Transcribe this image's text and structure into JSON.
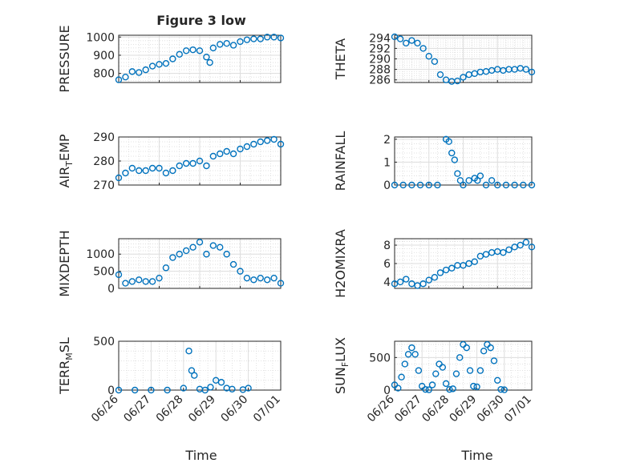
{
  "figure": {
    "title": "Figure 3 low",
    "xlabel": "Time",
    "marker_color": "#0072BD"
  },
  "chart_data": [
    {
      "type": "scatter",
      "ylabel": "PRESSURE",
      "x_range": [
        "06/26",
        "06/30"
      ],
      "ylim": [
        750,
        1010
      ],
      "yticks": [
        800,
        900,
        1000
      ],
      "grid": true,
      "x": [
        "06/26 00:00",
        "06/26 04:00",
        "06/26 08:00",
        "06/26 12:00",
        "06/26 16:00",
        "06/26 20:00",
        "06/27 00:00",
        "06/27 04:00",
        "06/27 08:00",
        "06/27 12:00",
        "06/27 16:00",
        "06/27 20:00",
        "06/28 00:00",
        "06/28 04:00",
        "06/28 06:00",
        "06/28 08:00",
        "06/28 12:00",
        "06/28 16:00",
        "06/28 20:00",
        "06/29 00:00",
        "06/29 04:00",
        "06/29 08:00",
        "06/29 12:00",
        "06/29 16:00",
        "06/29 20:00",
        "06/30 00:00"
      ],
      "y": [
        765,
        780,
        810,
        805,
        820,
        840,
        850,
        855,
        880,
        905,
        925,
        930,
        925,
        890,
        860,
        940,
        960,
        965,
        955,
        975,
        985,
        990,
        990,
        1000,
        1000,
        995
      ]
    },
    {
      "type": "scatter",
      "ylabel": "THETA",
      "x_range": [
        "06/26",
        "06/30"
      ],
      "ylim": [
        285.5,
        294.5
      ],
      "yticks": [
        286,
        288,
        290,
        292,
        294
      ],
      "grid": true,
      "x": [
        "06/26 00:00",
        "06/26 04:00",
        "06/26 08:00",
        "06/26 12:00",
        "06/26 16:00",
        "06/26 20:00",
        "06/27 00:00",
        "06/27 04:00",
        "06/27 08:00",
        "06/27 12:00",
        "06/27 16:00",
        "06/27 20:00",
        "06/28 00:00",
        "06/28 04:00",
        "06/28 08:00",
        "06/28 12:00",
        "06/28 16:00",
        "06/28 20:00",
        "06/29 00:00",
        "06/29 04:00",
        "06/29 08:00",
        "06/29 12:00",
        "06/29 16:00",
        "06/29 20:00",
        "06/30 00:00"
      ],
      "y": [
        294.2,
        293.8,
        293.0,
        293.5,
        293.0,
        292.0,
        290.5,
        289.5,
        287.0,
        286.0,
        285.7,
        285.8,
        286.5,
        287.0,
        287.2,
        287.5,
        287.6,
        287.8,
        288.0,
        287.8,
        288.0,
        288.0,
        288.2,
        288.0,
        287.5
      ]
    },
    {
      "type": "scatter",
      "ylabel": "AIR_TEMP",
      "x_range": [
        "06/26",
        "06/30"
      ],
      "ylim": [
        270,
        290
      ],
      "yticks": [
        270,
        280,
        290
      ],
      "grid": true,
      "x": [
        "06/26 00:00",
        "06/26 04:00",
        "06/26 08:00",
        "06/26 12:00",
        "06/26 16:00",
        "06/26 20:00",
        "06/27 00:00",
        "06/27 04:00",
        "06/27 08:00",
        "06/27 12:00",
        "06/27 16:00",
        "06/27 20:00",
        "06/28 00:00",
        "06/28 04:00",
        "06/28 08:00",
        "06/28 12:00",
        "06/28 16:00",
        "06/28 20:00",
        "06/29 00:00",
        "06/29 04:00",
        "06/29 08:00",
        "06/29 12:00",
        "06/29 16:00",
        "06/29 20:00",
        "06/30 00:00"
      ],
      "y": [
        273,
        275,
        277,
        276,
        276,
        277,
        277,
        275,
        276,
        278,
        279,
        279,
        280,
        278,
        282,
        283,
        284,
        283,
        285,
        286,
        287,
        288,
        288.5,
        289,
        287
      ]
    },
    {
      "type": "scatter",
      "ylabel": "RAINFALL",
      "x_range": [
        "06/26",
        "06/30"
      ],
      "ylim": [
        0,
        2.1
      ],
      "yticks": [
        0,
        1,
        2
      ],
      "grid": true,
      "x": [
        "06/26 00:00",
        "06/26 06:00",
        "06/26 12:00",
        "06/26 18:00",
        "06/27 00:00",
        "06/27 06:00",
        "06/27 12:00",
        "06/27 14:00",
        "06/27 16:00",
        "06/27 18:00",
        "06/27 20:00",
        "06/27 22:00",
        "06/28 00:00",
        "06/28 04:00",
        "06/28 08:00",
        "06/28 10:00",
        "06/28 12:00",
        "06/28 16:00",
        "06/28 20:00",
        "06/29 00:00",
        "06/29 06:00",
        "06/29 12:00",
        "06/29 18:00",
        "06/30 00:00"
      ],
      "y": [
        0,
        0,
        0,
        0,
        0,
        0,
        2.0,
        1.9,
        1.4,
        1.1,
        0.5,
        0.2,
        0,
        0.2,
        0.3,
        0.2,
        0.4,
        0,
        0.2,
        0,
        0,
        0,
        0,
        0
      ]
    },
    {
      "type": "scatter",
      "ylabel": "MIXDEPTH",
      "x_range": [
        "06/26",
        "06/30"
      ],
      "ylim": [
        0,
        1450
      ],
      "yticks": [
        0,
        500,
        1000
      ],
      "grid": true,
      "x": [
        "06/26 00:00",
        "06/26 04:00",
        "06/26 08:00",
        "06/26 12:00",
        "06/26 16:00",
        "06/26 20:00",
        "06/27 00:00",
        "06/27 04:00",
        "06/27 08:00",
        "06/27 12:00",
        "06/27 16:00",
        "06/27 20:00",
        "06/28 00:00",
        "06/28 04:00",
        "06/28 08:00",
        "06/28 12:00",
        "06/28 16:00",
        "06/28 20:00",
        "06/29 00:00",
        "06/29 04:00",
        "06/29 08:00",
        "06/29 12:00",
        "06/29 16:00",
        "06/29 20:00",
        "06/30 00:00"
      ],
      "y": [
        400,
        150,
        200,
        250,
        200,
        200,
        300,
        600,
        900,
        1000,
        1100,
        1200,
        1350,
        1000,
        1250,
        1200,
        1000,
        700,
        500,
        300,
        250,
        300,
        250,
        300,
        150
      ]
    },
    {
      "type": "scatter",
      "ylabel": "H2OMIXRA",
      "x_range": [
        "06/26",
        "06/30"
      ],
      "ylim": [
        3.3,
        8.7
      ],
      "yticks": [
        4,
        6,
        8
      ],
      "grid": true,
      "x": [
        "06/26 00:00",
        "06/26 04:00",
        "06/26 08:00",
        "06/26 12:00",
        "06/26 16:00",
        "06/26 20:00",
        "06/27 00:00",
        "06/27 04:00",
        "06/27 08:00",
        "06/27 12:00",
        "06/27 16:00",
        "06/27 20:00",
        "06/28 00:00",
        "06/28 04:00",
        "06/28 08:00",
        "06/28 12:00",
        "06/28 16:00",
        "06/28 20:00",
        "06/29 00:00",
        "06/29 04:00",
        "06/29 08:00",
        "06/29 12:00",
        "06/29 16:00",
        "06/29 20:00",
        "06/30 00:00"
      ],
      "y": [
        3.8,
        4.0,
        4.3,
        3.8,
        3.6,
        3.8,
        4.2,
        4.5,
        5.0,
        5.3,
        5.5,
        5.8,
        5.8,
        6.0,
        6.2,
        6.8,
        7.0,
        7.2,
        7.3,
        7.2,
        7.5,
        7.8,
        8.0,
        8.3,
        7.8
      ]
    },
    {
      "type": "scatter",
      "ylabel": "TERR_MSL",
      "x_range": [
        "06/26",
        "07/01"
      ],
      "ylim": [
        0,
        500
      ],
      "yticks": [
        0,
        500
      ],
      "grid": true,
      "x": [
        "06/26 00:00",
        "06/26 12:00",
        "06/27 00:00",
        "06/27 12:00",
        "06/28 00:00",
        "06/28 04:00",
        "06/28 06:00",
        "06/28 08:00",
        "06/28 12:00",
        "06/28 16:00",
        "06/28 20:00",
        "06/29 00:00",
        "06/29 04:00",
        "06/29 08:00",
        "06/29 12:00",
        "06/29 20:00",
        "06/30 00:00"
      ],
      "y": [
        0,
        0,
        0,
        0,
        20,
        400,
        200,
        150,
        10,
        0,
        30,
        100,
        80,
        20,
        10,
        5,
        20
      ]
    },
    {
      "type": "scatter",
      "ylabel": "SUN_FLUX",
      "x_range": [
        "06/26",
        "07/01"
      ],
      "ylim": [
        0,
        750
      ],
      "yticks": [
        0,
        500
      ],
      "grid": true,
      "x": [
        "06/26 00:00",
        "06/26 03:00",
        "06/26 06:00",
        "06/26 09:00",
        "06/26 12:00",
        "06/26 15:00",
        "06/26 18:00",
        "06/26 21:00",
        "06/27 00:00",
        "06/27 03:00",
        "06/27 06:00",
        "06/27 09:00",
        "06/27 12:00",
        "06/27 15:00",
        "06/27 18:00",
        "06/27 21:00",
        "06/28 00:00",
        "06/28 03:00",
        "06/28 06:00",
        "06/28 09:00",
        "06/28 12:00",
        "06/28 15:00",
        "06/28 18:00",
        "06/28 21:00",
        "06/29 00:00",
        "06/29 03:00",
        "06/29 06:00",
        "06/29 09:00",
        "06/29 12:00",
        "06/29 15:00",
        "06/29 18:00",
        "06/29 21:00",
        "06/30 00:00"
      ],
      "y": [
        80,
        30,
        200,
        400,
        550,
        650,
        550,
        300,
        60,
        10,
        5,
        80,
        250,
        400,
        350,
        100,
        10,
        20,
        250,
        500,
        700,
        650,
        300,
        60,
        50,
        300,
        600,
        700,
        650,
        450,
        150,
        10,
        5
      ]
    }
  ]
}
